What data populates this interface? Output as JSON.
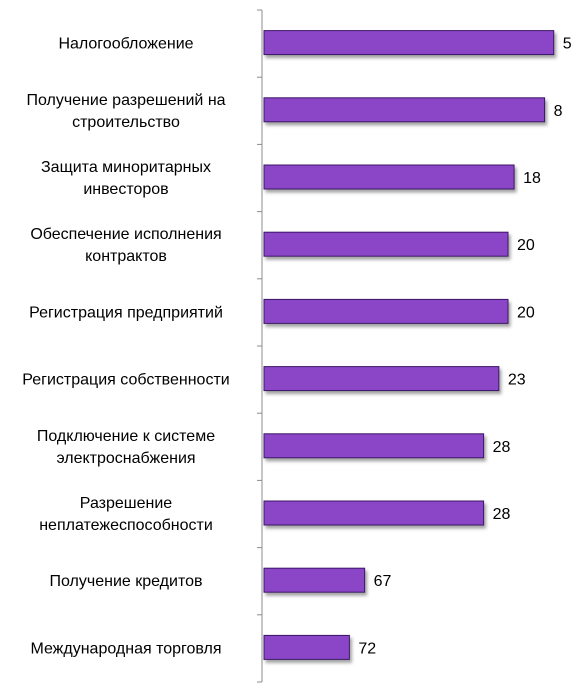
{
  "chart_data": {
    "type": "bar",
    "orientation": "horizontal",
    "categories": [
      [
        "Налогообложение"
      ],
      [
        "Получение разрешений на",
        "строительство"
      ],
      [
        "Защита миноритарных",
        "инвесторов"
      ],
      [
        "Обеспечение исполнения",
        "контрактов"
      ],
      [
        "Регистрация предприятий"
      ],
      [
        "Регистрация собственности"
      ],
      [
        "Подключение к системе",
        "электроснабжения"
      ],
      [
        "Разрешение",
        "неплатежеспособности"
      ],
      [
        "Получение кредитов"
      ],
      [
        "Международная торговля"
      ]
    ],
    "values": [
      5,
      8,
      18,
      20,
      20,
      23,
      28,
      28,
      67,
      72
    ],
    "axis": "reversed",
    "xlim": [
      0,
      100
    ],
    "grid": false,
    "legend": "none",
    "colors": {
      "bar_fill": "#8b44c7",
      "bar_stroke": "#3a1466",
      "bar_shadow": "#9a9a9a",
      "axis_line": "#8c8c8c"
    }
  }
}
